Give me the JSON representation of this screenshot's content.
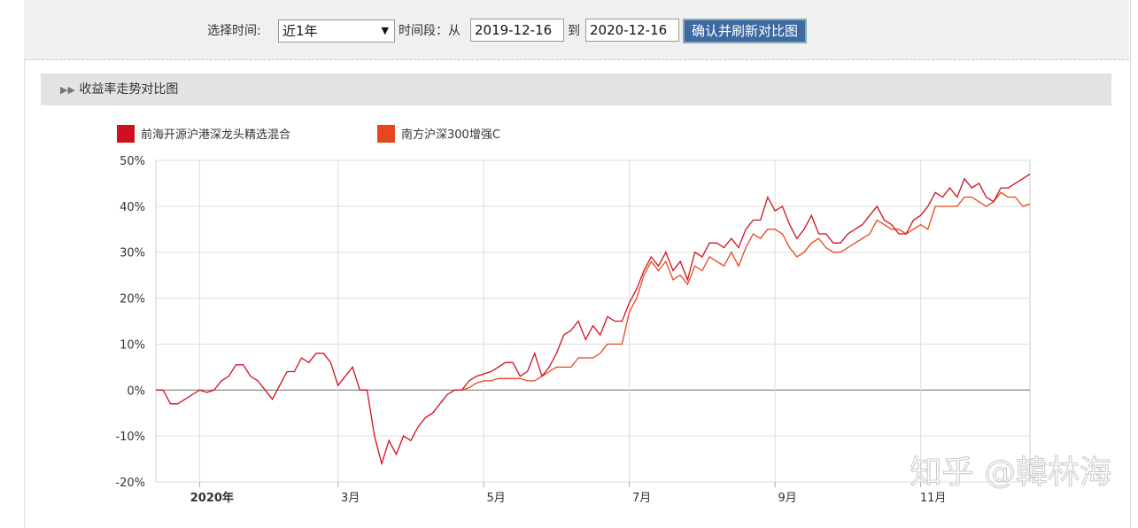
{
  "toolbar": {
    "time_label": "选择时间:",
    "select_value": "近1年",
    "range_label": "时间段：从",
    "start_date": "2019-12-16",
    "to_label": "到",
    "end_date": "2020-12-16",
    "button": "确认并刷新对比图"
  },
  "panel": {
    "title": "收益率走势对比图"
  },
  "watermark": "知乎 @韓林海",
  "chart_data": {
    "type": "line",
    "categories": [
      null,
      null,
      null,
      null,
      null,
      null,
      "2020年",
      null,
      null,
      null,
      null,
      null,
      null,
      null,
      null,
      null,
      null,
      null,
      null,
      null,
      null,
      null,
      null,
      null,
      null,
      "3月",
      null,
      null,
      null,
      null,
      null,
      null,
      null,
      null,
      null,
      null,
      null,
      null,
      null,
      null,
      null,
      null,
      null,
      null,
      null,
      "5月",
      null,
      null,
      null,
      null,
      null,
      null,
      null,
      null,
      null,
      null,
      null,
      null,
      null,
      null,
      null,
      null,
      null,
      null,
      null,
      "7月",
      null,
      null,
      null,
      null,
      null,
      null,
      null,
      null,
      null,
      null,
      null,
      null,
      null,
      null,
      null,
      null,
      null,
      null,
      null,
      "9月",
      null,
      null,
      null,
      null,
      null,
      null,
      null,
      null,
      null,
      null,
      null,
      null,
      null,
      null,
      null,
      null,
      null,
      null,
      null,
      "11月",
      null,
      null,
      null,
      null,
      null,
      null,
      null,
      null,
      null,
      null,
      null,
      null,
      null,
      null,
      null
    ],
    "series": [
      {
        "name": "前海开源沪港深龙头精选混合",
        "color": "#d0101e",
        "values": [
          0,
          0,
          -3,
          -3,
          -2,
          -1,
          0,
          -0.5,
          0,
          2,
          3,
          5.5,
          5.5,
          3,
          2,
          0,
          -2,
          1,
          4,
          4,
          7,
          6,
          8,
          8,
          6,
          1,
          3,
          5,
          0,
          0,
          -10,
          -16,
          -11,
          -14,
          -10,
          -11,
          -8,
          -6,
          -5,
          -3,
          -1,
          0,
          0,
          2,
          3,
          3.5,
          4,
          5,
          6,
          6,
          3,
          4,
          8,
          3,
          5,
          8,
          12,
          13,
          15,
          11,
          14,
          12,
          16,
          15,
          15,
          19,
          22,
          26,
          29,
          27,
          30,
          26,
          28,
          24,
          30,
          29,
          32,
          32,
          31,
          33,
          31,
          35,
          37,
          37,
          42,
          39,
          40,
          36,
          33,
          35,
          38,
          34,
          34,
          32,
          32,
          34,
          35,
          36,
          38,
          40,
          37,
          36,
          34,
          34,
          37,
          38,
          40,
          43,
          42,
          44,
          42,
          46,
          44,
          45,
          42,
          41,
          44,
          44,
          45,
          46,
          47
        ]
      },
      {
        "name": "南方沪深300增强C",
        "color": "#e8461e",
        "values": [
          null,
          null,
          null,
          null,
          null,
          null,
          null,
          null,
          null,
          null,
          null,
          null,
          null,
          null,
          null,
          null,
          null,
          null,
          null,
          null,
          null,
          null,
          null,
          null,
          null,
          null,
          null,
          null,
          null,
          null,
          null,
          null,
          null,
          null,
          null,
          null,
          null,
          null,
          null,
          null,
          null,
          null,
          0,
          0.5,
          1.5,
          2,
          2,
          2.5,
          2.5,
          2.5,
          2.5,
          2,
          2,
          3,
          4,
          5,
          5,
          5,
          7,
          7,
          7,
          8,
          10,
          10,
          10,
          17,
          20,
          25,
          28,
          26,
          28,
          24,
          25,
          23,
          27,
          26,
          29,
          28,
          27,
          30,
          27,
          31,
          34,
          33,
          35,
          35,
          34,
          31,
          29,
          30,
          32,
          33,
          31,
          30,
          30,
          31,
          32,
          33,
          34,
          37,
          36,
          35,
          35,
          34,
          35,
          36,
          35,
          40,
          40,
          40,
          40,
          42,
          42,
          41,
          40,
          41,
          43,
          42,
          42,
          40,
          40.5
        ]
      }
    ],
    "ylim": [
      -20,
      50
    ],
    "yticks": [
      {
        "value": -20,
        "label": "-20%"
      },
      {
        "value": -10,
        "label": "-10%"
      },
      {
        "value": 0,
        "label": "0%"
      },
      {
        "value": 10,
        "label": "10%"
      },
      {
        "value": 20,
        "label": "20%"
      },
      {
        "value": 30,
        "label": "30%"
      },
      {
        "value": 40,
        "label": "40%"
      },
      {
        "value": 50,
        "label": "50%"
      }
    ],
    "grid": true
  }
}
